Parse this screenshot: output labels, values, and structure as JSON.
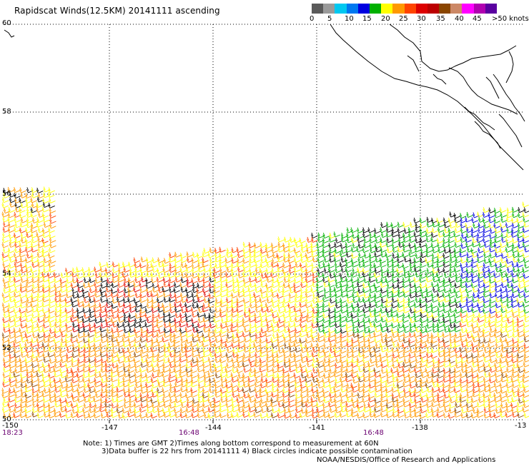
{
  "title": "Rapidscat Winds(12.5KM) 20141111 ascending",
  "legend": {
    "labels": [
      "0",
      "5",
      "10",
      "15",
      "20",
      "25",
      "30",
      "35",
      "40",
      "45",
      ">50 knots"
    ],
    "colors": [
      "#5a5a5a",
      "#9a9a9a",
      "#00c8f0",
      "#0078f0",
      "#0000e0",
      "#00b000",
      "#ffff00",
      "#ff9900",
      "#ff4400",
      "#dd0000",
      "#bb0000",
      "#8a4500",
      "#cc8866",
      "#ff00ff",
      "#b000b0",
      "#5a00a0"
    ]
  },
  "axes": {
    "lat_labels": [
      "60",
      "58",
      "56",
      "54",
      "52",
      "50"
    ],
    "lon_labels": [
      "-150",
      "-147",
      "-144",
      "-141",
      "-138",
      "-13"
    ],
    "time_labels": [
      "18:23",
      "16:48",
      "16:48"
    ]
  },
  "notes": {
    "line1": "Note: 1) Times are GMT 2)Times along bottom correspond to measurement at 60N",
    "line2": "3)Data buffer is 22 hrs from 20141111 4) Black circles indicate possible contamination"
  },
  "credit": "NOAA/NESDIS/Office of Research and Applications",
  "colors": {
    "coast": "#000000",
    "grid": "#000000"
  }
}
